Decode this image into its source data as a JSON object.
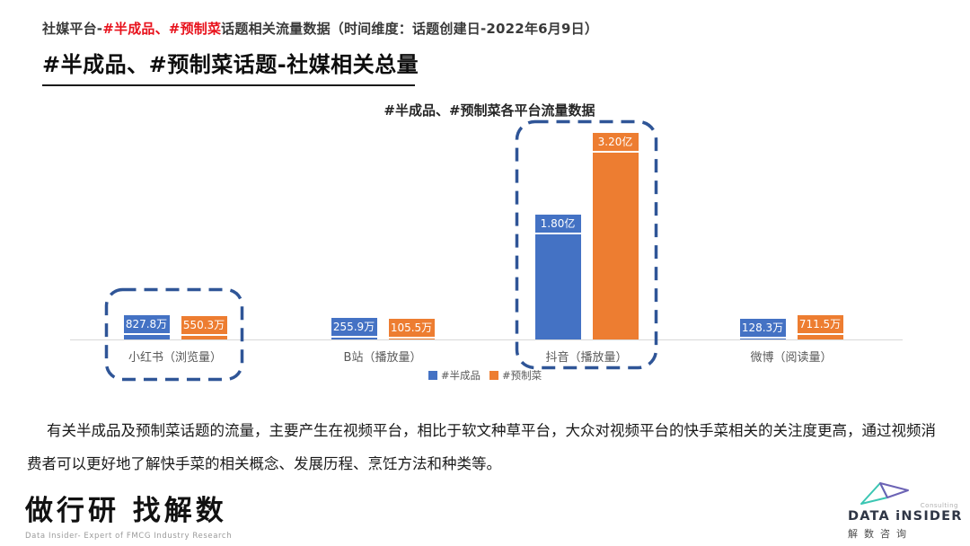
{
  "header": {
    "prefix": "社媒平台-",
    "highlight": "#半成品、#预制菜",
    "suffix": "话题相关流量数据（时间维度：话题创建日-2022年6月9日）",
    "title": "#半成品、#预制菜话题-社媒相关总量"
  },
  "chart_data": {
    "type": "bar",
    "title": "#半成品、#预制菜各平台流量数据",
    "categories": [
      "小红书（浏览量）",
      "B站（播放量）",
      "抖音（播放量）",
      "微博（阅读量）"
    ],
    "series": [
      {
        "name": "#半成品",
        "color": "#4472C4",
        "values": [
          8278000,
          2559000,
          180000000,
          1283000
        ],
        "labels": [
          "827.8万",
          "255.9万",
          "1.80亿",
          "128.3万"
        ]
      },
      {
        "name": "#预制菜",
        "color": "#ED7D31",
        "values": [
          5503000,
          1055000,
          320000000,
          7115000
        ],
        "labels": [
          "550.3万",
          "105.5万",
          "3.20亿",
          "711.5万"
        ]
      }
    ],
    "ylim": [
      0,
      340000000
    ],
    "grid": false,
    "legend_position": "bottom",
    "highlighted_categories": [
      "小红书（浏览量）",
      "抖音（播放量）"
    ],
    "highlight_color": "#2F5597"
  },
  "analysis": "有关半成品及预制菜话题的流量，主要产生在视频平台，相比于软文种草平台，大众对视频平台的快手菜相关的关注度更高，通过视频消费者可以更好地了解快手菜的相关概念、发展历程、烹饪方法和种类等。",
  "footer": {
    "left": {
      "logo_text": "做行研 找解数",
      "tagline": "Data Insider- Expert of FMCG Industry Research"
    },
    "right": {
      "brand": "DATA iNSIDER",
      "consulting": "Consulting",
      "brand_cn": "解数咨询"
    }
  },
  "colors": {
    "accent_red": "#E8121C",
    "series_blue": "#4472C4",
    "series_orange": "#ED7D31",
    "highlight_navy": "#2F5597",
    "axis_gray": "#D9D9D9"
  }
}
